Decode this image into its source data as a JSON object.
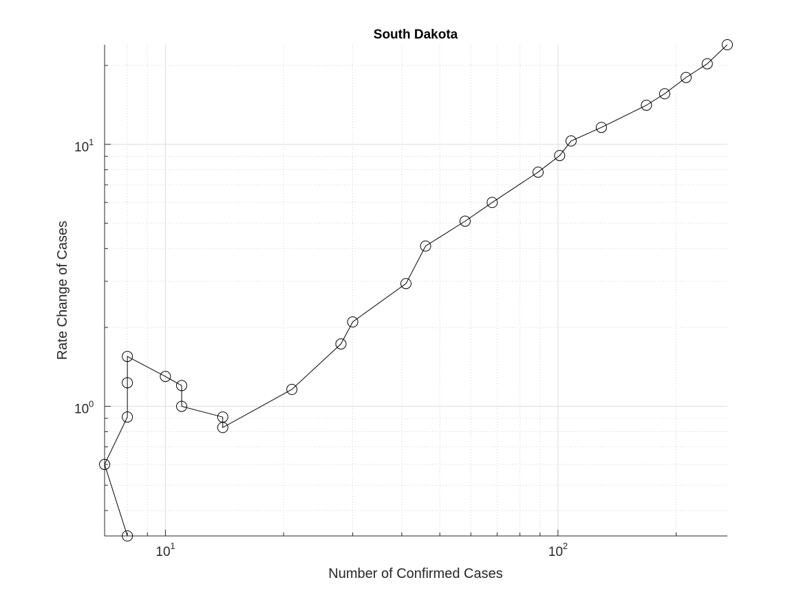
{
  "chart_data": {
    "type": "line",
    "title": "South Dakota",
    "xlabel": "Number of Confirmed Cases",
    "ylabel": "Rate Change of Cases",
    "x_scale": "log",
    "y_scale": "log",
    "xlim": [
      7,
      270
    ],
    "ylim": [
      0.32,
      24
    ],
    "x_ticks": [
      {
        "base": "10",
        "exp": "1",
        "value": 10
      },
      {
        "base": "10",
        "exp": "2",
        "value": 100
      }
    ],
    "y_ticks": [
      {
        "base": "10",
        "exp": "0",
        "value": 1
      },
      {
        "base": "10",
        "exp": "1",
        "value": 10
      }
    ],
    "grid": true,
    "marker": "open-circle",
    "line_color": "#000000",
    "series": [
      {
        "x": [
          8,
          7,
          8,
          8,
          8,
          10,
          11,
          11,
          14,
          14,
          21,
          28,
          30,
          41,
          46,
          58,
          68,
          89,
          101,
          108,
          129,
          168,
          187,
          212,
          240,
          270
        ],
        "y": [
          0.32,
          0.6,
          0.91,
          1.23,
          1.55,
          1.3,
          1.2,
          1.0,
          0.91,
          0.83,
          1.16,
          1.73,
          2.1,
          2.94,
          4.09,
          5.09,
          6.0,
          7.83,
          9.06,
          10.3,
          11.6,
          14.1,
          15.6,
          18.0,
          20.3,
          24.0
        ]
      }
    ]
  }
}
